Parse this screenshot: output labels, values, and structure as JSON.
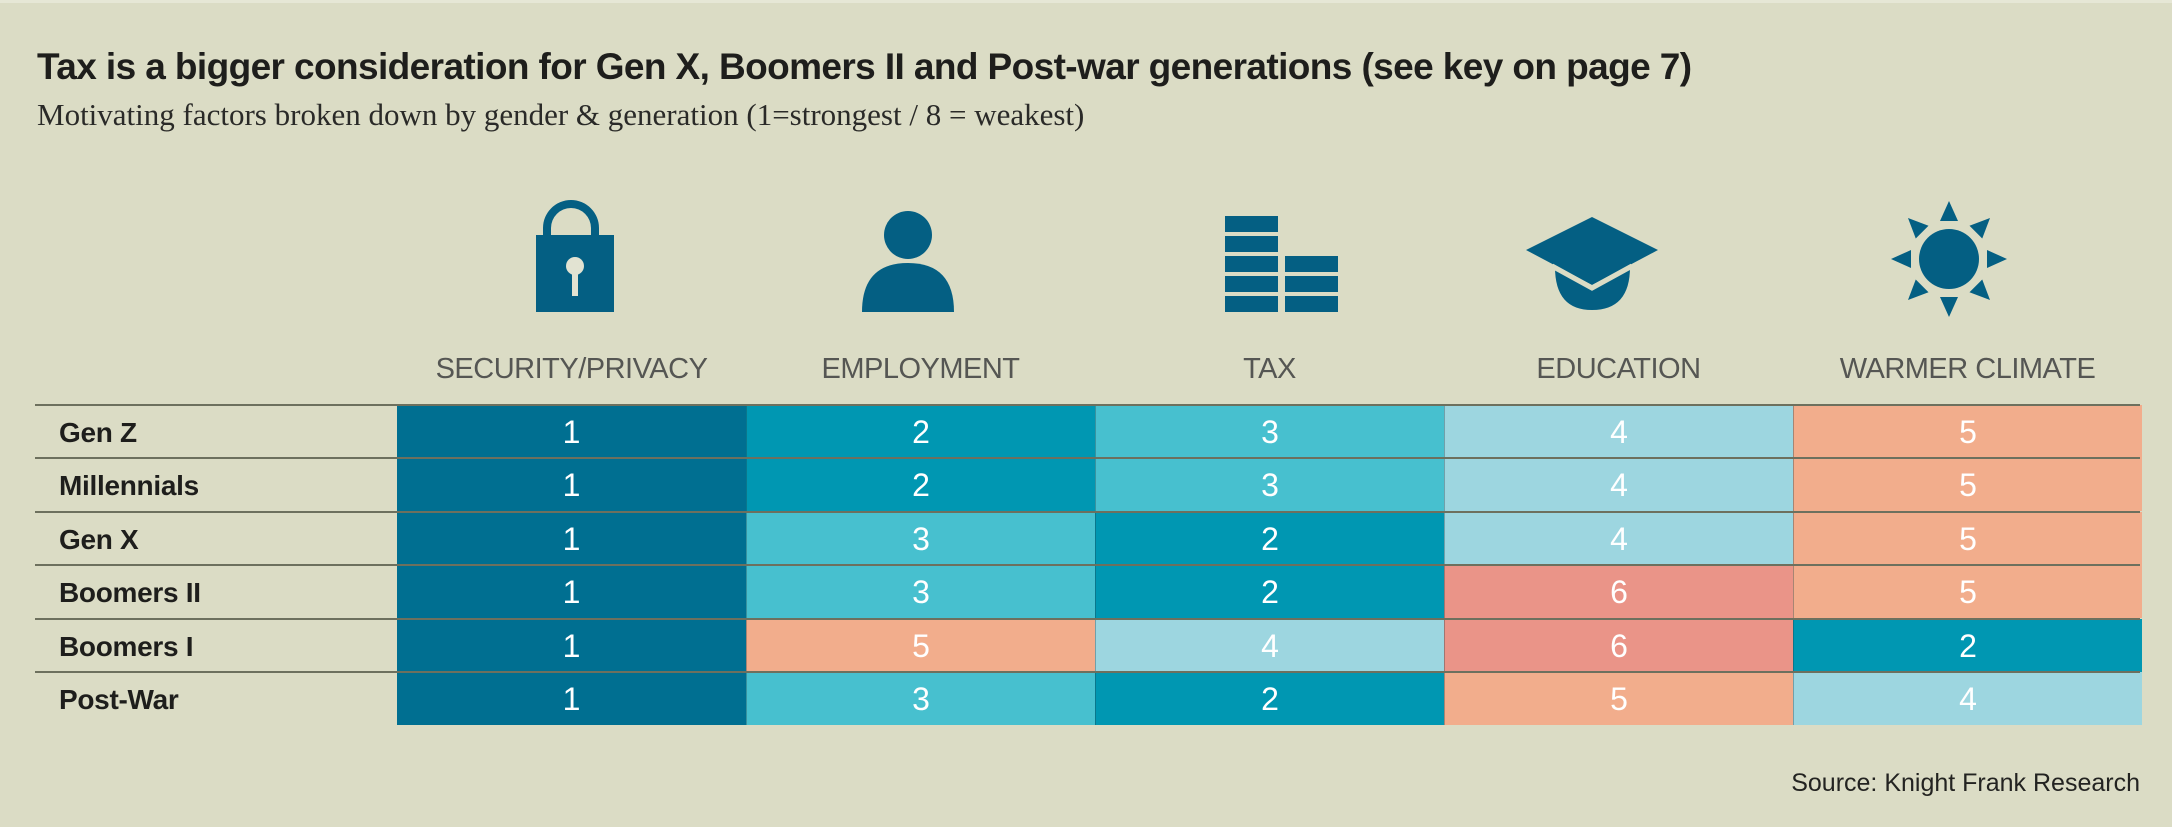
{
  "title": "Tax is a bigger consideration for Gen X, Boomers II and Post-war generations (see key on page 7)",
  "subtitle": "Motivating factors broken down by gender & generation (1=strongest / 8 = weakest)",
  "source": "Source: Knight Frank Research",
  "colors": {
    "background": "#dbdcc5",
    "icon": "#045f83",
    "rank_1": "#006f91",
    "rank_2": "#0097b2",
    "rank_3": "#47c0cf",
    "rank_4": "#9dd6e0",
    "rank_5": "#f2ad8c",
    "rank_6": "#ea9488"
  },
  "columns": [
    {
      "label": "SECURITY/PRIVACY",
      "icon": "lock-icon"
    },
    {
      "label": "EMPLOYMENT",
      "icon": "person-icon"
    },
    {
      "label": "TAX",
      "icon": "coin-stacks-icon"
    },
    {
      "label": "EDUCATION",
      "icon": "graduation-cap-icon"
    },
    {
      "label": "WARMER CLIMATE",
      "icon": "sun-icon"
    }
  ],
  "rows": [
    {
      "label": "Gen Z",
      "values": [
        1,
        2,
        3,
        4,
        5
      ]
    },
    {
      "label": "Millennials",
      "values": [
        1,
        2,
        3,
        4,
        5
      ]
    },
    {
      "label": "Gen X",
      "values": [
        1,
        3,
        2,
        4,
        5
      ]
    },
    {
      "label": "Boomers II",
      "values": [
        1,
        3,
        2,
        6,
        5
      ]
    },
    {
      "label": "Boomers I",
      "values": [
        1,
        5,
        4,
        6,
        2
      ]
    },
    {
      "label": "Post-War",
      "values": [
        1,
        3,
        2,
        5,
        4
      ]
    }
  ],
  "chart_data": {
    "type": "heatmap",
    "title": "Tax is a bigger consideration for Gen X, Boomers II and Post-war generations (see key on page 7)",
    "subtitle": "Motivating factors broken down by gender & generation (1=strongest / 8 = weakest)",
    "x": [
      "SECURITY/PRIVACY",
      "EMPLOYMENT",
      "TAX",
      "EDUCATION",
      "WARMER CLIMATE"
    ],
    "y": [
      "Gen Z",
      "Millennials",
      "Gen X",
      "Boomers II",
      "Boomers I",
      "Post-War"
    ],
    "values": [
      [
        1,
        2,
        3,
        4,
        5
      ],
      [
        1,
        2,
        3,
        4,
        5
      ],
      [
        1,
        3,
        2,
        4,
        5
      ],
      [
        1,
        3,
        2,
        6,
        5
      ],
      [
        1,
        5,
        4,
        6,
        2
      ],
      [
        1,
        3,
        2,
        5,
        4
      ]
    ],
    "value_meaning": "rank (1=strongest / 8=weakest)",
    "source": "Source: Knight Frank Research"
  }
}
